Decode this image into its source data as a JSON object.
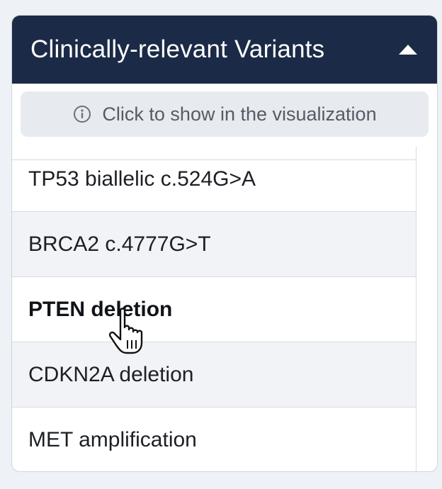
{
  "panel": {
    "title": "Clinically-relevant Variants",
    "collapse_icon": "caret-up-icon",
    "hint": {
      "icon": "info-icon",
      "text": "Click to show in the visualization"
    },
    "items": [
      {
        "label": "TP53 biallelic c.524G>A"
      },
      {
        "label": "BRCA2 c.4777G>T"
      },
      {
        "label": "PTEN deletion"
      },
      {
        "label": "CDKN2A deletion"
      },
      {
        "label": "MET amplification"
      }
    ],
    "hovered_item": "PTEN deletion"
  },
  "colors": {
    "header_bg": "#1b2a46",
    "header_text": "#ffffff",
    "hint_bg": "#e7eaef",
    "alt_row_bg": "#f2f3f6"
  },
  "cursor": "hand-pointer-icon"
}
